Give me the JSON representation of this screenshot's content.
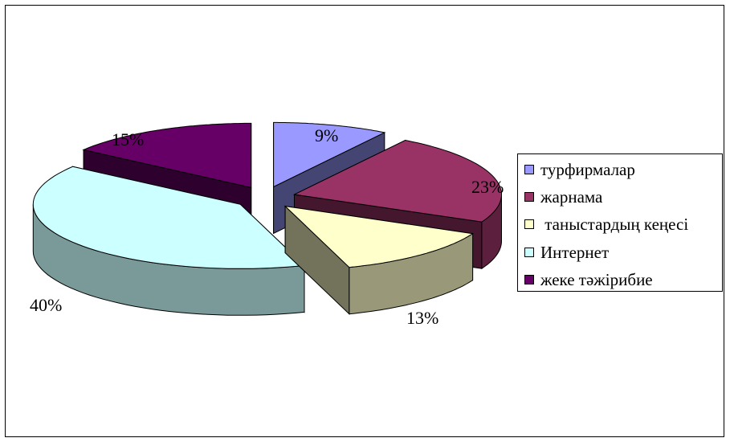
{
  "chart_data": {
    "type": "pie",
    "title": "",
    "categories": [
      "турфирмалар",
      "жарнама",
      " таныстардың кеңесі",
      "Интернет",
      "жеке тәжірибие"
    ],
    "values": [
      9,
      23,
      13,
      40,
      15
    ],
    "value_labels": [
      "9%",
      "23%",
      "13%",
      "40%",
      "15%"
    ],
    "colors": [
      "#9999ff",
      "#993366",
      "#ffffcc",
      "#ccffff",
      "#660066"
    ],
    "exploded": true,
    "three_d": true,
    "legend_position": "right"
  }
}
